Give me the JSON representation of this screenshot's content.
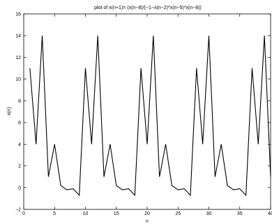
{
  "chart_data": {
    "type": "line",
    "title": "plot of x(n+1)= (x(n−8)/(−1−x(n−2)*x(n−5)*x(n−8))",
    "xlabel": "n",
    "ylabel": "x(n)",
    "xlim": [
      0,
      40
    ],
    "ylim": [
      -2,
      16
    ],
    "xticks": [
      0,
      5,
      10,
      15,
      20,
      25,
      30,
      35,
      40
    ],
    "yticks": [
      -2,
      0,
      2,
      4,
      6,
      8,
      10,
      12,
      14,
      16
    ],
    "xtick_labels": [
      "0",
      "5",
      "10",
      "15",
      "20",
      "25",
      "30",
      "35",
      "40"
    ],
    "ytick_labels": [
      "−2",
      "0",
      "2",
      "4",
      "6",
      "8",
      "10",
      "12",
      "14",
      "16"
    ],
    "grid": false,
    "line_color": "#000000",
    "series": [
      {
        "x": [
          1,
          2,
          3,
          4,
          5,
          6,
          7,
          8,
          9,
          10,
          11,
          12,
          13,
          14,
          15,
          16,
          17,
          18,
          19,
          20,
          21,
          22,
          23,
          24,
          25,
          26,
          27,
          28,
          29,
          30,
          31,
          32,
          33,
          34,
          35,
          36,
          37,
          38,
          39,
          40
        ],
        "values": [
          11,
          4,
          14,
          1,
          4,
          0.2,
          -0.2,
          -0.1,
          -0.7,
          11,
          4,
          14,
          1,
          4,
          0.2,
          -0.2,
          -0.1,
          -0.7,
          11,
          4,
          14,
          1,
          4,
          0.2,
          -0.2,
          -0.1,
          -0.7,
          11,
          4,
          14,
          1,
          4,
          0.2,
          -0.2,
          -0.1,
          -0.7,
          11,
          4,
          14,
          1
        ]
      }
    ]
  }
}
